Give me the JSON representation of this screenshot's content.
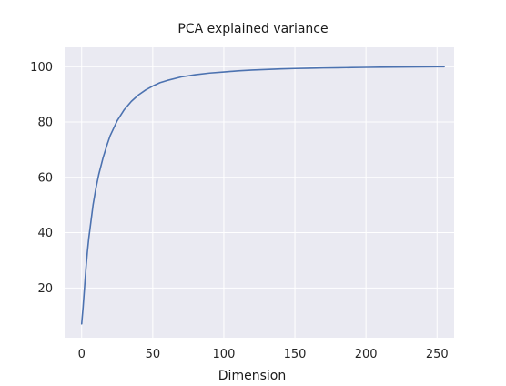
{
  "chart_data": {
    "type": "line",
    "title": "PCA explained variance",
    "xlabel": "Dimension",
    "ylabel": "",
    "xlim": [
      -12,
      262
    ],
    "ylim": [
      2,
      107
    ],
    "xticks": [
      0,
      50,
      100,
      150,
      200,
      250
    ],
    "yticks": [
      20,
      40,
      60,
      80,
      100
    ],
    "grid": true,
    "colors": {
      "plot_background": "#eaeaf2",
      "grid": "#ffffff",
      "line": "#4c72b0"
    },
    "series": [
      {
        "x": [
          0,
          1,
          2,
          3,
          4,
          5,
          6,
          8,
          10,
          12,
          15,
          18,
          20,
          25,
          30,
          35,
          40,
          45,
          50,
          55,
          60,
          70,
          80,
          90,
          100,
          110,
          120,
          130,
          140,
          150,
          160,
          170,
          180,
          190,
          200,
          210,
          220,
          230,
          240,
          250,
          255
        ],
        "values": [
          7,
          13,
          20,
          27,
          33,
          38,
          42,
          50,
          56,
          61,
          67,
          72,
          75,
          80.5,
          84.5,
          87.5,
          89.8,
          91.6,
          93,
          94.2,
          95,
          96.3,
          97.1,
          97.7,
          98.1,
          98.5,
          98.8,
          99,
          99.2,
          99.35,
          99.45,
          99.55,
          99.62,
          99.7,
          99.76,
          99.82,
          99.87,
          99.91,
          99.95,
          99.98,
          100
        ]
      }
    ]
  }
}
